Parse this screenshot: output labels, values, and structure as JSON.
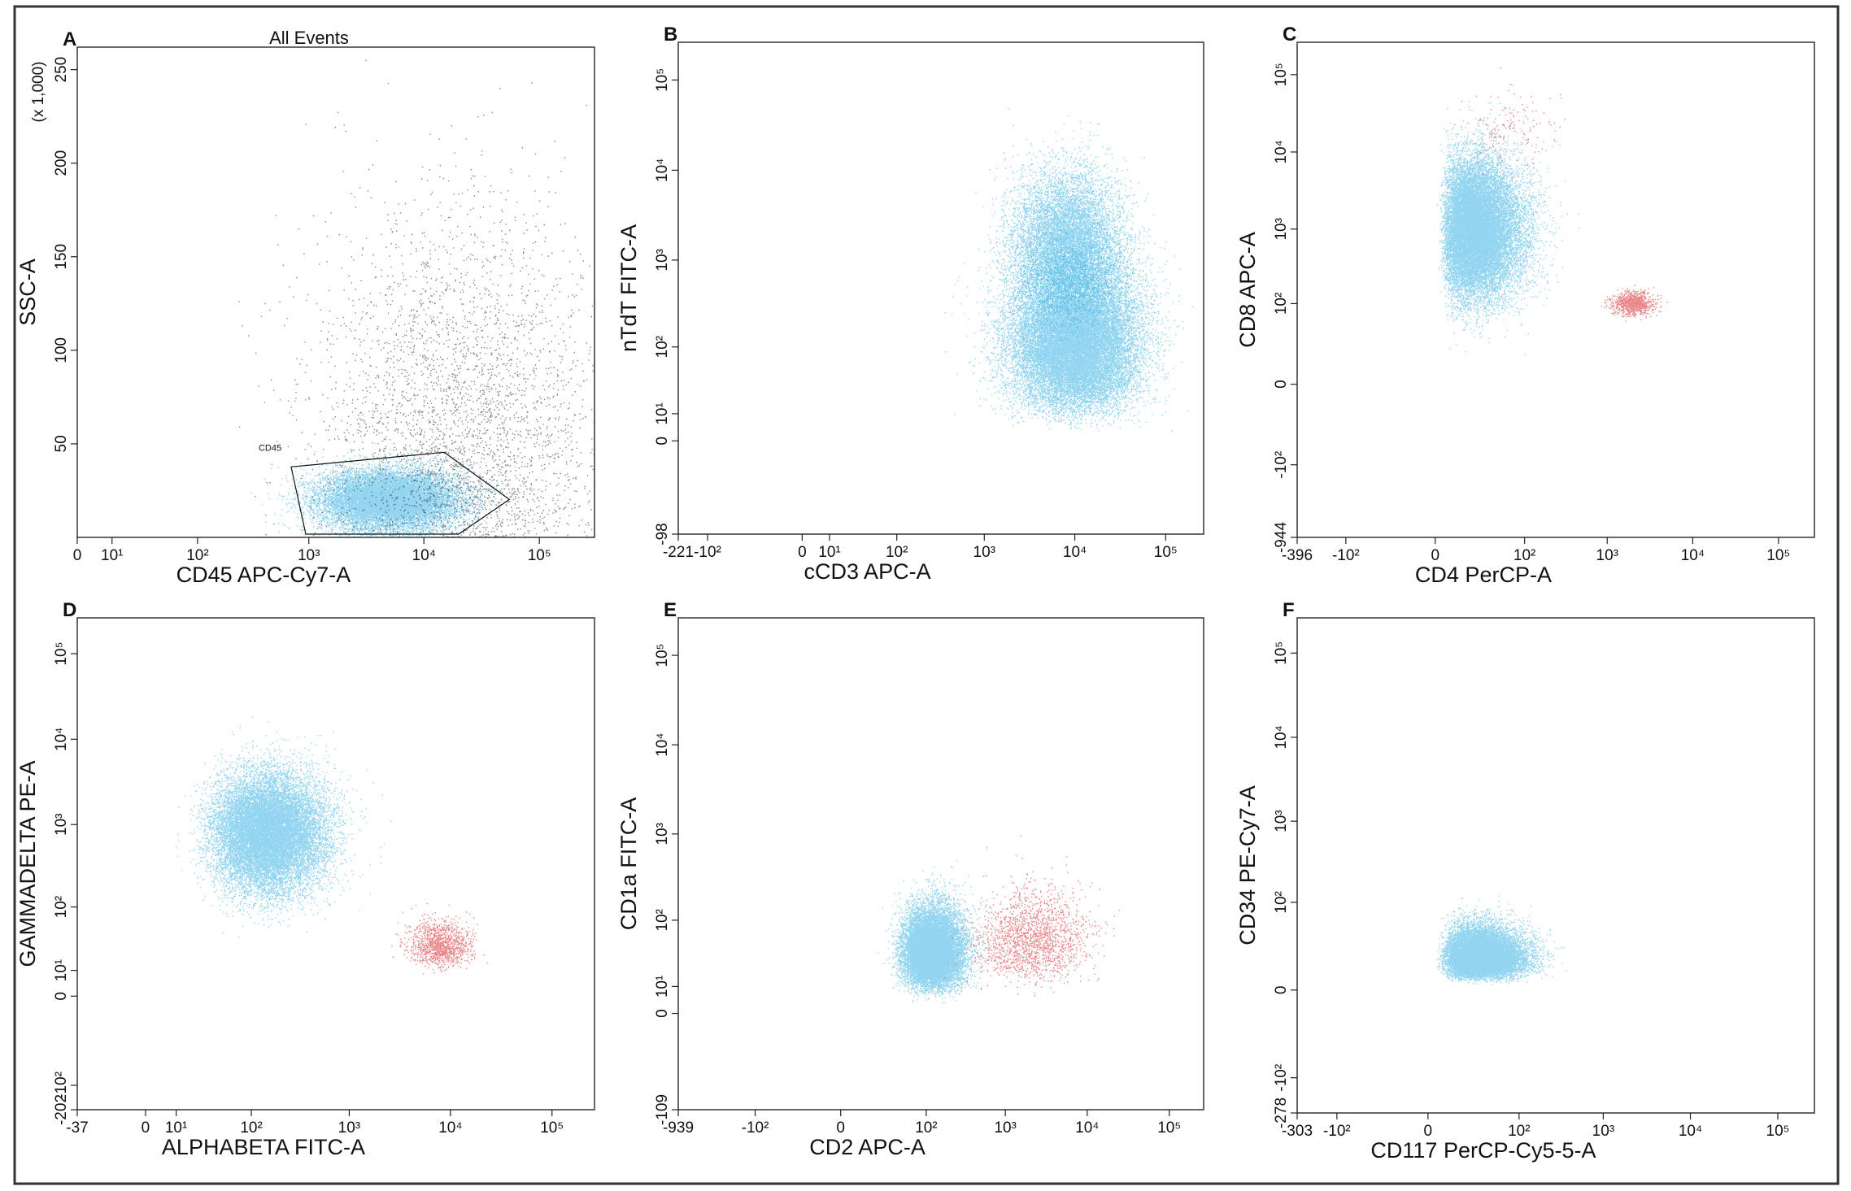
{
  "figure": {
    "panels": [
      {
        "letter": "A",
        "title": "All Events",
        "xlabel": "CD45 APC-Cy7-A",
        "ylabel": "SSC-A",
        "ylabel_scale": "(x 1,000)",
        "x_ticks": [
          "0",
          "10¹",
          "10²",
          "10³",
          "10⁴",
          "10⁵"
        ],
        "y_ticks": [
          "50",
          "100",
          "150",
          "200",
          "250"
        ],
        "gate_label": "CD45"
      },
      {
        "letter": "B",
        "xlabel": "cCD3 APC-A",
        "ylabel": "nTdT FITC-A",
        "x_ticks": [
          "-221",
          "-10²",
          "0",
          "10¹",
          "10²",
          "10³",
          "10⁴",
          "10⁵"
        ],
        "y_ticks": [
          "-98",
          "0",
          "10¹",
          "10²",
          "10³",
          "10⁴",
          "10⁵"
        ]
      },
      {
        "letter": "C",
        "xlabel": "CD4 PerCP-A",
        "ylabel": "CD8 APC-A",
        "x_ticks": [
          "-396",
          "-10²",
          "0",
          "10²",
          "10³",
          "10⁴",
          "10⁵"
        ],
        "y_ticks": [
          "-944",
          "-10²",
          "0",
          "10²",
          "10³",
          "10⁴",
          "10⁵"
        ]
      },
      {
        "letter": "D",
        "xlabel": "ALPHABETA FITC-A",
        "ylabel": "GAMMADELTA PE-A",
        "x_ticks": [
          "-37",
          "0",
          "10¹",
          "10²",
          "10³",
          "10⁴",
          "10⁵"
        ],
        "y_ticks": [
          "-202",
          "-10²",
          "0",
          "10¹",
          "10²",
          "10³",
          "10⁴",
          "10⁵"
        ]
      },
      {
        "letter": "E",
        "xlabel": "CD2 APC-A",
        "ylabel": "CD1a FITC-A",
        "x_ticks": [
          "-939",
          "-10²",
          "0",
          "10²",
          "10³",
          "10⁴",
          "10⁵"
        ],
        "y_ticks": [
          "-109",
          "0",
          "10¹",
          "10²",
          "10³",
          "10⁴",
          "10⁵"
        ]
      },
      {
        "letter": "F",
        "xlabel": "CD117 PerCP-Cy5-5-A",
        "ylabel": "CD34 PE-Cy7-A",
        "x_ticks": [
          "-303",
          "-10²",
          "0",
          "10²",
          "10³",
          "10⁴",
          "10⁵"
        ],
        "y_ticks": [
          "-278",
          "-10²",
          "0",
          "10²",
          "10³",
          "10⁴",
          "10⁵"
        ]
      }
    ]
  },
  "colors": {
    "gated_population": "#3cb4e6",
    "secondary_population": "#d9262b",
    "ungated_events": "#222222",
    "frame": "#333333"
  },
  "chart_data": [
    {
      "type": "scatter",
      "panel": "A",
      "title": "All Events",
      "xlabel": "CD45 APC-Cy7-A",
      "ylabel": "SSC-A",
      "x_scale": "log",
      "y_scale": "linear",
      "xlim": [
        0,
        300000
      ],
      "ylim": [
        0,
        262000
      ],
      "series": [
        {
          "name": "CD45",
          "color": "#3cb4e6",
          "center": [
            5000,
            20000
          ],
          "spread": [
            3000,
            8000
          ],
          "count": 14000
        },
        {
          "color": "#222222",
          "center": [
            20000,
            60000
          ],
          "spread": [
            25000,
            60000
          ],
          "count": 3500
        }
      ],
      "gate": {
        "name": "CD45",
        "x_range": [
          700,
          55000
        ],
        "y_range": [
          0,
          42000
        ]
      }
    },
    {
      "type": "scatter",
      "panel": "B",
      "xlabel": "cCD3 APC-A",
      "ylabel": "nTdT FITC-A",
      "x_scale": "log",
      "y_scale": "log",
      "xlim": [
        -221,
        262000
      ],
      "ylim": [
        -98,
        262000
      ],
      "series": [
        {
          "color": "#3cb4e6",
          "center": [
            10000,
            120
          ],
          "spread_decades": [
            0.35,
            0.45
          ],
          "count": 22000
        },
        {
          "color": "#3cb4e6",
          "center": [
            8000,
            1500
          ],
          "spread_decades": [
            0.3,
            0.4
          ],
          "count": 9000
        }
      ]
    },
    {
      "type": "scatter",
      "panel": "C",
      "xlabel": "CD4 PerCP-A",
      "ylabel": "CD8 APC-A",
      "x_scale": "log",
      "y_scale": "log",
      "xlim": [
        -396,
        262000
      ],
      "ylim": [
        -944,
        262000
      ],
      "series": [
        {
          "color": "#3cb4e6",
          "center": [
            20,
            1000
          ],
          "spread_decades": [
            0.35,
            0.45
          ],
          "count": 18000
        },
        {
          "color": "#d9262b",
          "center": [
            2000,
            100
          ],
          "spread_decades": [
            0.12,
            0.08
          ],
          "count": 900
        },
        {
          "color": "#d9262b",
          "center": [
            60,
            20000
          ],
          "spread_decades": [
            0.3,
            0.25
          ],
          "count": 150
        }
      ]
    },
    {
      "type": "scatter",
      "panel": "D",
      "xlabel": "ALPHABETA FITC-A",
      "ylabel": "GAMMADELTA PE-A",
      "x_scale": "log",
      "y_scale": "log",
      "xlim": [
        -37,
        262000
      ],
      "ylim": [
        -202,
        262000
      ],
      "series": [
        {
          "color": "#3cb4e6",
          "center": [
            150,
            800
          ],
          "spread_decades": [
            0.3,
            0.35
          ],
          "count": 16000
        },
        {
          "color": "#d9262b",
          "center": [
            8000,
            30
          ],
          "spread_decades": [
            0.15,
            0.18
          ],
          "count": 1200
        }
      ]
    },
    {
      "type": "scatter",
      "panel": "E",
      "xlabel": "CD2 APC-A",
      "ylabel": "CD1a FITC-A",
      "x_scale": "log",
      "y_scale": "log",
      "xlim": [
        -939,
        262000
      ],
      "ylim": [
        -109,
        262000
      ],
      "series": [
        {
          "color": "#3cb4e6",
          "center": [
            120,
            40
          ],
          "spread_decades": [
            0.2,
            0.28
          ],
          "count": 14000
        },
        {
          "color": "#d9262b",
          "center": [
            2000,
            60
          ],
          "spread_decades": [
            0.35,
            0.3
          ],
          "count": 1800
        }
      ]
    },
    {
      "type": "scatter",
      "panel": "F",
      "xlabel": "CD117 PerCP-Cy5-5-A",
      "ylabel": "CD34 PE-Cy7-A",
      "x_scale": "log",
      "y_scale": "log",
      "xlim": [
        -303,
        262000
      ],
      "ylim": [
        -278,
        262000
      ],
      "series": [
        {
          "color": "#3cb4e6",
          "center": [
            30,
            15
          ],
          "spread_decades": [
            0.3,
            0.25
          ],
          "count": 14000
        }
      ]
    }
  ]
}
